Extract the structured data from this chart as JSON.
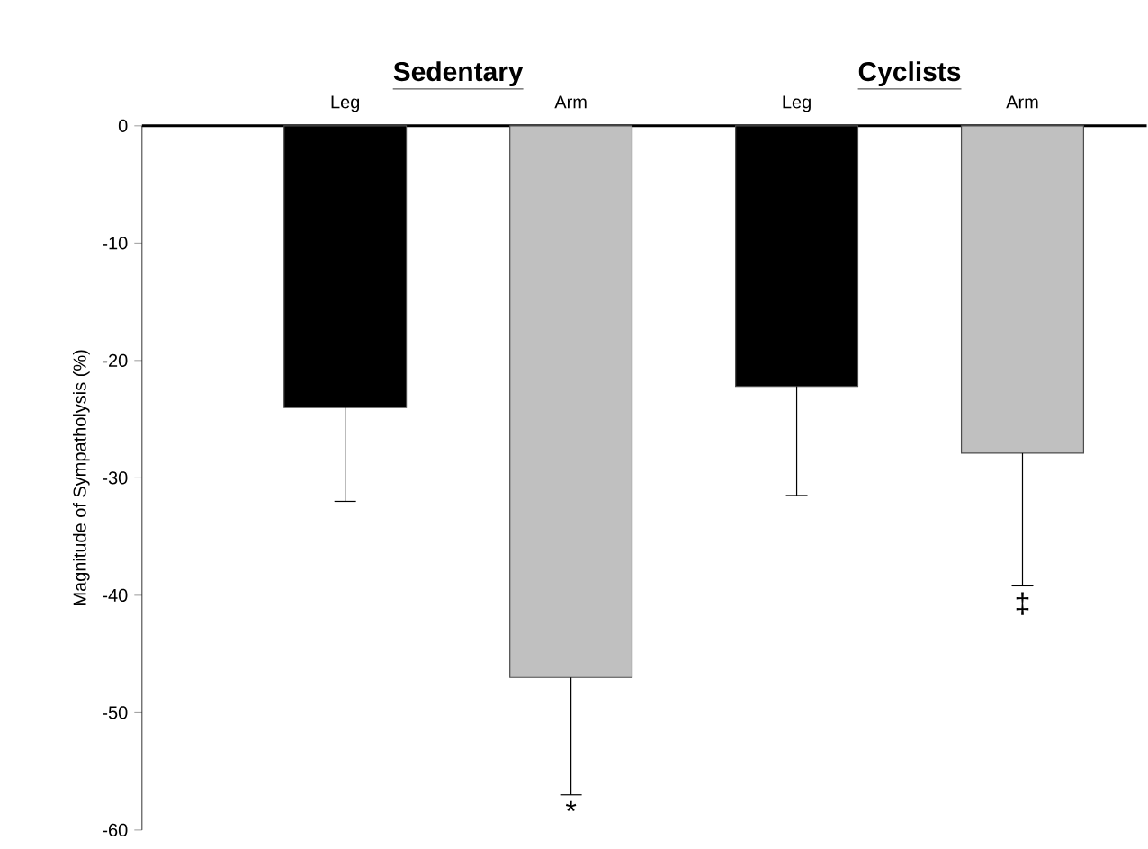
{
  "chart_data": {
    "type": "bar",
    "ylabel": "Magnitude of Sympatholysis (%)",
    "categories": [
      "Leg",
      "Arm",
      "Leg",
      "Arm"
    ],
    "values": [
      -24,
      -47,
      -22.2,
      -27.9
    ],
    "colors": [
      "#000000",
      "#c0c0c0",
      "#000000",
      "#c0c0c0"
    ],
    "errors": [
      [
        -32,
        -24
      ],
      [
        -57,
        -47
      ],
      [
        -31.5,
        -22.2
      ],
      [
        -39.2,
        -27.9
      ]
    ],
    "ylim": [
      -60,
      0
    ],
    "yticks": [
      -60,
      -50,
      -40,
      -30,
      -20,
      -10,
      0
    ],
    "annotations": [
      "Sedentary",
      "Cyclists",
      {
        "text": "*",
        "y": -57
      },
      {
        "text": "‡",
        "y": -39.2
      }
    ]
  }
}
